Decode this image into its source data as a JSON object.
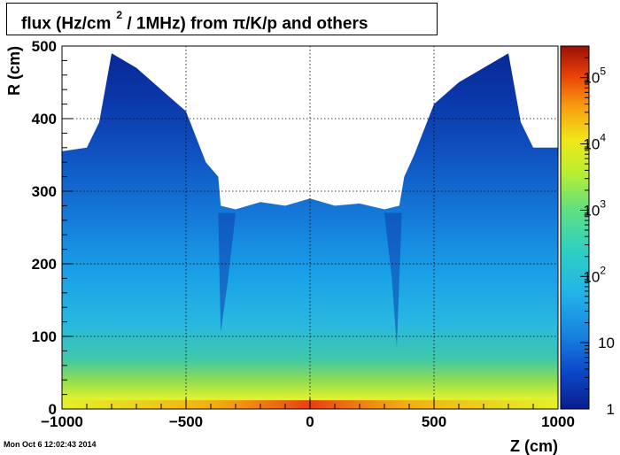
{
  "chart_data": {
    "type": "heatmap",
    "title": "flux (Hz/cm² / 1MHz) from  π/K/p and others",
    "title_main": "flux (Hz/cm",
    "title_sup": "2",
    "title_rest": " / 1MHz) from   π/K/p and others",
    "xlabel": "Z (cm)",
    "ylabel": "R (cm)",
    "xlim": [
      -1000,
      1000
    ],
    "ylim": [
      0,
      500
    ],
    "xticks": [
      -1000,
      -500,
      0,
      500,
      1000
    ],
    "xtick_labels": [
      "−1000",
      "−500",
      "0",
      "500",
      "1000"
    ],
    "yticks": [
      0,
      100,
      200,
      300,
      400,
      500
    ],
    "ytick_labels": [
      "0",
      "100",
      "200",
      "300",
      "400",
      "500"
    ],
    "grid": true,
    "colorbar": {
      "scale": "log",
      "range": [
        1,
        300000
      ],
      "labels": [
        {
          "value": 1,
          "base": "1",
          "exp": ""
        },
        {
          "value": 10,
          "base": "10",
          "exp": ""
        },
        {
          "value": 100,
          "base": "10",
          "exp": "2"
        },
        {
          "value": 1000,
          "base": "10",
          "exp": "3"
        },
        {
          "value": 10000,
          "base": "10",
          "exp": "4"
        },
        {
          "value": 100000,
          "base": "10",
          "exp": "5"
        }
      ]
    },
    "outer_boundary_rz": [
      [
        -1000,
        355
      ],
      [
        -900,
        360
      ],
      [
        -850,
        395
      ],
      [
        -800,
        490
      ],
      [
        -700,
        470
      ],
      [
        -600,
        440
      ],
      [
        -500,
        410
      ],
      [
        -420,
        340
      ],
      [
        -370,
        320
      ],
      [
        -360,
        280
      ],
      [
        -300,
        275
      ],
      [
        -200,
        285
      ],
      [
        -100,
        280
      ],
      [
        0,
        290
      ],
      [
        100,
        280
      ],
      [
        200,
        283
      ],
      [
        300,
        275
      ],
      [
        360,
        280
      ],
      [
        380,
        320
      ],
      [
        420,
        350
      ],
      [
        500,
        420
      ],
      [
        600,
        450
      ],
      [
        700,
        470
      ],
      [
        800,
        490
      ],
      [
        850,
        395
      ],
      [
        900,
        360
      ],
      [
        1000,
        360
      ]
    ],
    "hole_boundary_rz": [
      [
        -370,
        270
      ],
      [
        -360,
        105
      ],
      [
        -330,
        180
      ],
      [
        -300,
        270
      ],
      [
        300,
        270
      ],
      [
        330,
        180
      ],
      [
        350,
        85
      ],
      [
        370,
        270
      ]
    ]
  },
  "footer": {
    "timestamp": "Mon Oct  6 12:02:43 2014"
  },
  "colors": {
    "frame": "#000000",
    "grid": "#000000",
    "background": "#ffffff"
  }
}
